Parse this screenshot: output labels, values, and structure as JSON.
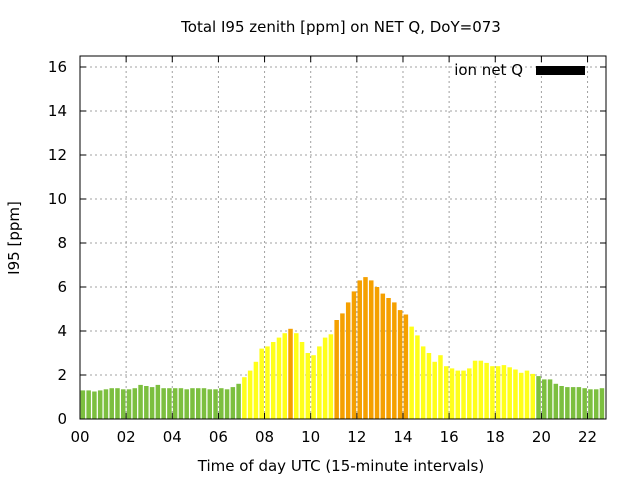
{
  "chart_data": {
    "type": "bar",
    "title": "Total I95 zenith [ppm] on NET Q, DoY=073",
    "xlabel": "Time of day UTC (15-minute intervals)",
    "ylabel": "I95 [ppm]",
    "xlim": [
      0,
      22.8
    ],
    "ylim": [
      0,
      16.5
    ],
    "xticks": [
      "00",
      "02",
      "04",
      "06",
      "08",
      "10",
      "12",
      "14",
      "16",
      "18",
      "20",
      "22"
    ],
    "yticks": [
      "0",
      "2",
      "4",
      "6",
      "8",
      "10",
      "12",
      "14",
      "16"
    ],
    "grid": true,
    "legend": {
      "label": "ion net Q",
      "color": "#000000",
      "placement": "top-right"
    },
    "colors": {
      "green": "#7cbf3f",
      "yellow": "#ffff1a",
      "orange": "#f5a000"
    },
    "x": [
      0.125,
      0.375,
      0.625,
      0.875,
      1.125,
      1.375,
      1.625,
      1.875,
      2.125,
      2.375,
      2.625,
      2.875,
      3.125,
      3.375,
      3.625,
      3.875,
      4.125,
      4.375,
      4.625,
      4.875,
      5.125,
      5.375,
      5.625,
      5.875,
      6.125,
      6.375,
      6.625,
      6.875,
      7.125,
      7.375,
      7.625,
      7.875,
      8.125,
      8.375,
      8.625,
      8.875,
      9.125,
      9.375,
      9.625,
      9.875,
      10.125,
      10.375,
      10.625,
      10.875,
      11.125,
      11.375,
      11.625,
      11.875,
      12.125,
      12.375,
      12.625,
      12.875,
      13.125,
      13.375,
      13.625,
      13.875,
      14.125,
      14.375,
      14.625,
      14.875,
      15.125,
      15.375,
      15.625,
      15.875,
      16.125,
      16.375,
      16.625,
      16.875,
      17.125,
      17.375,
      17.625,
      17.875,
      18.125,
      18.375,
      18.625,
      18.875,
      19.125,
      19.375,
      19.625,
      19.875,
      20.125,
      20.375,
      20.625,
      20.875,
      21.125,
      21.375,
      21.625,
      21.875,
      22.125,
      22.375,
      22.625
    ],
    "values": [
      1.3,
      1.3,
      1.25,
      1.3,
      1.35,
      1.4,
      1.4,
      1.35,
      1.35,
      1.4,
      1.55,
      1.5,
      1.45,
      1.55,
      1.4,
      1.4,
      1.4,
      1.4,
      1.35,
      1.4,
      1.4,
      1.4,
      1.35,
      1.35,
      1.4,
      1.35,
      1.45,
      1.6,
      1.9,
      2.2,
      2.6,
      3.2,
      3.3,
      3.5,
      3.7,
      3.9,
      4.1,
      3.9,
      3.5,
      3.0,
      2.9,
      3.3,
      3.7,
      3.85,
      4.5,
      4.8,
      5.3,
      5.8,
      6.3,
      6.45,
      6.3,
      6.0,
      5.7,
      5.5,
      5.3,
      4.95,
      4.75,
      4.2,
      3.8,
      3.3,
      3.0,
      2.6,
      2.9,
      2.4,
      2.3,
      2.2,
      2.2,
      2.3,
      2.65,
      2.65,
      2.55,
      2.4,
      2.4,
      2.45,
      2.35,
      2.25,
      2.1,
      2.2,
      2.05,
      1.95,
      1.8,
      1.8,
      1.6,
      1.5,
      1.45,
      1.45,
      1.45,
      1.4,
      1.35,
      1.35,
      1.4
    ],
    "bar_colors": [
      "green",
      "green",
      "green",
      "green",
      "green",
      "green",
      "green",
      "green",
      "green",
      "green",
      "green",
      "green",
      "green",
      "green",
      "green",
      "green",
      "green",
      "green",
      "green",
      "green",
      "green",
      "green",
      "green",
      "green",
      "green",
      "green",
      "green",
      "green",
      "yellow",
      "yellow",
      "yellow",
      "yellow",
      "yellow",
      "yellow",
      "yellow",
      "yellow",
      "orange",
      "yellow",
      "yellow",
      "yellow",
      "yellow",
      "yellow",
      "yellow",
      "yellow",
      "orange",
      "orange",
      "orange",
      "orange",
      "orange",
      "orange",
      "orange",
      "orange",
      "orange",
      "orange",
      "orange",
      "orange",
      "orange",
      "yellow",
      "yellow",
      "yellow",
      "yellow",
      "yellow",
      "yellow",
      "yellow",
      "yellow",
      "yellow",
      "yellow",
      "yellow",
      "yellow",
      "yellow",
      "yellow",
      "yellow",
      "yellow",
      "yellow",
      "yellow",
      "yellow",
      "yellow",
      "yellow",
      "yellow",
      "green",
      "green",
      "green",
      "green",
      "green",
      "green",
      "green",
      "green",
      "green",
      "green",
      "green",
      "green"
    ]
  }
}
